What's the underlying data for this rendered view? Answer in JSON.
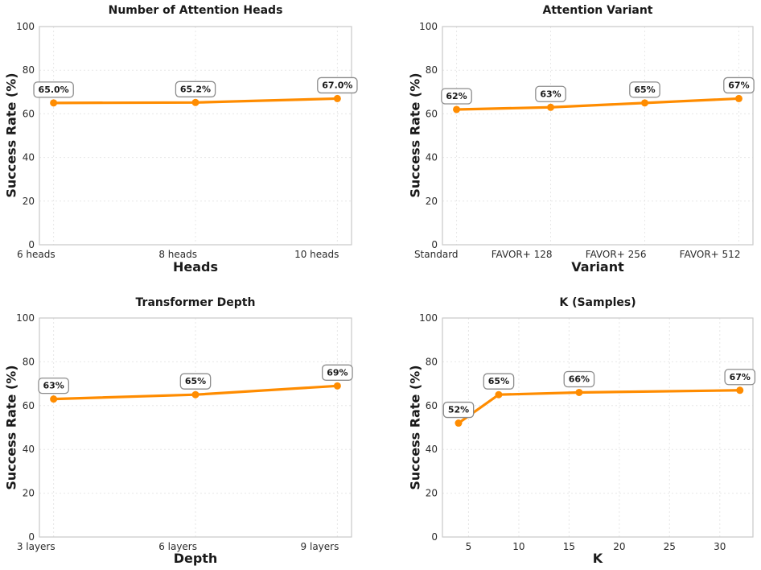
{
  "figure": {
    "background": "#ffffff"
  },
  "style": {
    "line_color": "#FF8C00",
    "marker_color": "#FF8C00",
    "grid_color": "#e7e7e7",
    "spine_color": "#c9c9c9",
    "title_color": "#1a1a1a",
    "axis_label_color": "#1a1a1a",
    "tick_color": "#2b2b2b",
    "annotation_bg": "#ffffff",
    "annotation_border": "#8c8c8c",
    "annotation_text": "#1a1a1a"
  },
  "chart_data": [
    {
      "id": "attention-heads",
      "type": "line",
      "title": "Number of Attention Heads",
      "xlabel": "Heads",
      "ylabel": "Success Rate (%)",
      "x_type": "category",
      "categories": [
        "6 heads",
        "8 heads",
        "10 heads"
      ],
      "values": [
        65.0,
        65.2,
        67.0
      ],
      "point_labels": [
        "65.0%",
        "65.2%",
        "67.0%"
      ],
      "ylim": [
        0,
        100
      ],
      "yticks": [
        0,
        20,
        40,
        60,
        80,
        100
      ],
      "grid": true,
      "xtick_align": "right",
      "legend_position": "none"
    },
    {
      "id": "attention-variant",
      "type": "line",
      "title": "Attention Variant",
      "xlabel": "Variant",
      "ylabel": "Success Rate (%)",
      "x_type": "category",
      "categories": [
        "Standard",
        "FAVOR+ 128",
        "FAVOR+ 256",
        "FAVOR+ 512"
      ],
      "values": [
        62,
        63,
        65,
        67
      ],
      "point_labels": [
        "62%",
        "63%",
        "65%",
        "67%"
      ],
      "ylim": [
        0,
        100
      ],
      "yticks": [
        0,
        20,
        40,
        60,
        80,
        100
      ],
      "grid": true,
      "xtick_align": "right",
      "legend_position": "none"
    },
    {
      "id": "transformer-depth",
      "type": "line",
      "title": "Transformer Depth",
      "xlabel": "Depth",
      "ylabel": "Success Rate (%)",
      "x_type": "category",
      "categories": [
        "3 layers",
        "6 layers",
        "9 layers"
      ],
      "values": [
        63,
        65,
        69
      ],
      "point_labels": [
        "63%",
        "65%",
        "69%"
      ],
      "ylim": [
        0,
        100
      ],
      "yticks": [
        0,
        20,
        40,
        60,
        80,
        100
      ],
      "grid": true,
      "xtick_align": "right",
      "legend_position": "none"
    },
    {
      "id": "k-samples",
      "type": "line",
      "title": "K (Samples)",
      "xlabel": "K",
      "ylabel": "Success Rate (%)",
      "x_type": "numeric",
      "x": [
        4,
        8,
        16,
        32
      ],
      "values": [
        52,
        65,
        66,
        67
      ],
      "point_labels": [
        "52%",
        "65%",
        "66%",
        "67%"
      ],
      "xticks": [
        5,
        10,
        15,
        20,
        25,
        30
      ],
      "xlim": [
        2.4,
        33.3
      ],
      "ylim": [
        0,
        100
      ],
      "yticks": [
        0,
        20,
        40,
        60,
        80,
        100
      ],
      "grid": true,
      "xtick_align": "center",
      "legend_position": "none"
    }
  ]
}
